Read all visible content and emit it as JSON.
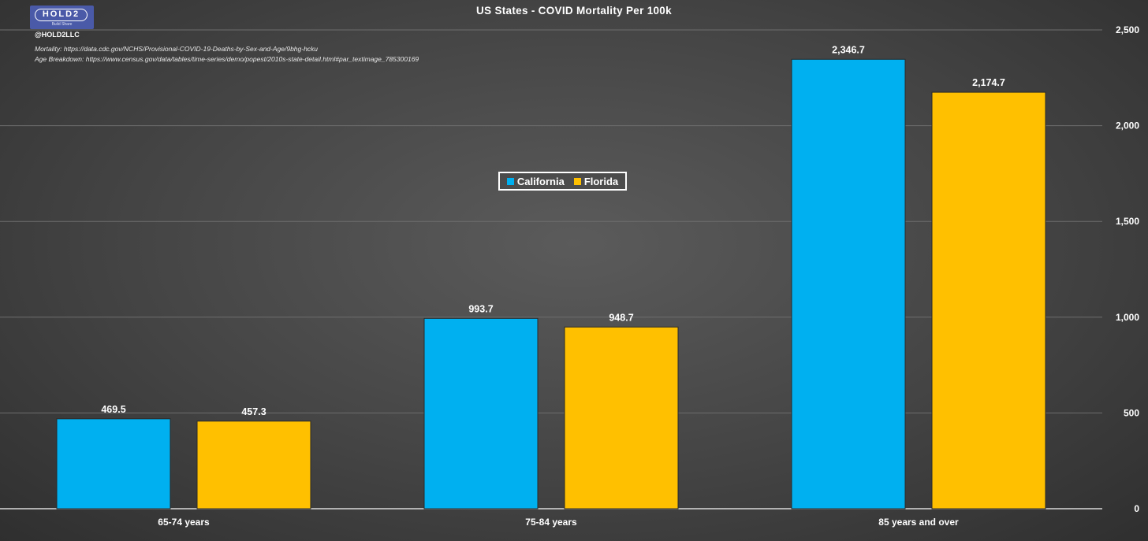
{
  "branding": {
    "logo_text": "HOLD2",
    "logo_subtext": "Build Share",
    "handle": "@HOLD2LLC",
    "sources": [
      "Mortality: https://data.cdc.gov/NCHS/Provisional-COVID-19-Deaths-by-Sex-and-Age/9bhg-hcku",
      "Age Breakdown: https://www.census.gov/data/tables/time-series/demo/popest/2010s-state-detail.html#par_textimage_785300169"
    ]
  },
  "colors": {
    "california": "#00b0f0",
    "florida": "#ffc000",
    "gridline": "#6e6e6e"
  },
  "chart_data": {
    "type": "bar",
    "title": "US States - COVID Mortality Per 100k",
    "categories": [
      "65-74 years",
      "75-84 years",
      "85 years and over"
    ],
    "series": [
      {
        "name": "California",
        "values": [
          469.5,
          993.7,
          2346.7
        ],
        "labels": [
          "469.5",
          "993.7",
          "2,346.7"
        ]
      },
      {
        "name": "Florida",
        "values": [
          457.3,
          948.7,
          2174.7
        ],
        "labels": [
          "457.3",
          "948.7",
          "2,174.7"
        ]
      }
    ],
    "ylim": [
      0,
      2500
    ],
    "yticks": [
      0,
      500,
      1000,
      1500,
      2000,
      2500
    ],
    "ytick_labels": [
      "0",
      "500",
      "1,000",
      "1,500",
      "2,000",
      "2,500"
    ],
    "y_axis_side": "right",
    "grid": true,
    "legend_placement": "center",
    "xlabel": "",
    "ylabel": ""
  }
}
